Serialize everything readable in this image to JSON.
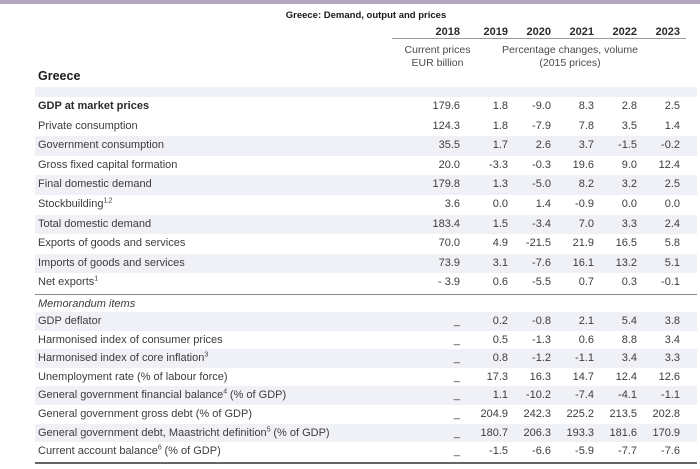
{
  "table": {
    "title": "Greece: Demand, output and prices",
    "country_label": "Greece",
    "years": [
      "2018",
      "2019",
      "2020",
      "2021",
      "2022",
      "2023"
    ],
    "col2018_header_line1": "Current prices",
    "col2018_header_line2": "EUR billion",
    "pct_header_line1": "Percentage changes, volume",
    "pct_header_line2": "(2015 prices)",
    "rows": [
      {
        "label": "GDP at market prices",
        "sup": "",
        "after": "",
        "indent": 0,
        "bold": true,
        "italic": false,
        "shaded": false,
        "section": "main",
        "values": [
          "179.6",
          "1.8",
          "-9.0",
          "8.3",
          "2.8",
          "2.5"
        ]
      },
      {
        "label": "Private consumption",
        "sup": "",
        "after": "",
        "indent": 1,
        "bold": false,
        "italic": false,
        "shaded": false,
        "section": "main",
        "values": [
          "124.3",
          "1.8",
          "-7.9",
          "7.8",
          "3.5",
          "1.4"
        ]
      },
      {
        "label": "Government consumption",
        "sup": "",
        "after": "",
        "indent": 1,
        "bold": false,
        "italic": false,
        "shaded": true,
        "section": "main",
        "values": [
          "35.5",
          "1.7",
          "2.6",
          "3.7",
          "-1.5",
          "-0.2"
        ]
      },
      {
        "label": "Gross fixed capital formation",
        "sup": "",
        "after": "",
        "indent": 1,
        "bold": false,
        "italic": false,
        "shaded": false,
        "section": "main",
        "values": [
          "20.0",
          "-3.3",
          "-0.3",
          "19.6",
          "9.0",
          "12.4"
        ]
      },
      {
        "label": "Final domestic demand",
        "sup": "",
        "after": "",
        "indent": 1,
        "bold": false,
        "italic": false,
        "shaded": true,
        "section": "main",
        "values": [
          "179.8",
          "1.3",
          "-5.0",
          "8.2",
          "3.2",
          "2.5"
        ]
      },
      {
        "label": "Stockbuilding",
        "sup": "1,2",
        "after": "",
        "indent": 2,
        "bold": false,
        "italic": false,
        "shaded": false,
        "section": "main",
        "values": [
          "3.6",
          "0.0",
          "1.4",
          "-0.9",
          "0.0",
          "0.0"
        ]
      },
      {
        "label": "Total domestic demand",
        "sup": "",
        "after": "",
        "indent": 1,
        "bold": false,
        "italic": false,
        "shaded": true,
        "section": "main",
        "values": [
          "183.4",
          "1.5",
          "-3.4",
          "7.0",
          "3.3",
          "2.4"
        ]
      },
      {
        "label": "Exports of goods and services",
        "sup": "",
        "after": "",
        "indent": 1,
        "bold": false,
        "italic": false,
        "shaded": false,
        "section": "main",
        "values": [
          "70.0",
          "4.9",
          "-21.5",
          "21.9",
          "16.5",
          "5.8"
        ]
      },
      {
        "label": "Imports of goods and services",
        "sup": "",
        "after": "",
        "indent": 1,
        "bold": false,
        "italic": false,
        "shaded": true,
        "section": "main",
        "values": [
          "73.9",
          "3.1",
          "-7.6",
          "16.1",
          "13.2",
          "5.1"
        ]
      },
      {
        "label": "Net exports",
        "sup": "1",
        "after": "",
        "indent": 2,
        "bold": false,
        "italic": false,
        "shaded": false,
        "section": "main",
        "values": [
          "- 3.9",
          "0.6",
          "-5.5",
          "0.7",
          "0.3",
          "-0.1"
        ]
      },
      {
        "label": "Memorandum items",
        "sup": "",
        "after": "",
        "indent": 0,
        "bold": false,
        "italic": true,
        "shaded": false,
        "section": "memo-title",
        "values": [
          "",
          "",
          "",
          "",
          "",
          ""
        ]
      },
      {
        "label": "GDP deflator",
        "sup": "",
        "after": "",
        "indent": 0,
        "bold": false,
        "italic": false,
        "shaded": true,
        "section": "memo",
        "values": [
          "_",
          "0.2",
          "-0.8",
          "2.1",
          "5.4",
          "3.8"
        ]
      },
      {
        "label": "Harmonised index of consumer prices",
        "sup": "",
        "after": "",
        "indent": 0,
        "bold": false,
        "italic": false,
        "shaded": false,
        "section": "memo",
        "values": [
          "_",
          "0.5",
          "-1.3",
          "0.6",
          "8.8",
          "3.4"
        ]
      },
      {
        "label": "Harmonised index of core inflation",
        "sup": "3",
        "after": "",
        "indent": 0,
        "bold": false,
        "italic": false,
        "shaded": true,
        "section": "memo",
        "values": [
          "_",
          "0.8",
          "-1.2",
          "-1.1",
          "3.4",
          "3.3"
        ]
      },
      {
        "label": "Unemployment rate (% of labour force)",
        "sup": "",
        "after": "",
        "indent": 0,
        "bold": false,
        "italic": false,
        "shaded": false,
        "section": "memo",
        "values": [
          "_",
          "17.3",
          "16.3",
          "14.7",
          "12.4",
          "12.6"
        ]
      },
      {
        "label": "General government financial balance",
        "sup": "4",
        "after": " (% of GDP)",
        "indent": 0,
        "bold": false,
        "italic": false,
        "shaded": true,
        "section": "memo",
        "values": [
          "_",
          "1.1",
          "-10.2",
          "-7.4",
          "-4.1",
          "-1.1"
        ]
      },
      {
        "label": "General government gross debt (% of GDP)",
        "sup": "",
        "after": "",
        "indent": 0,
        "bold": false,
        "italic": false,
        "shaded": false,
        "section": "memo",
        "values": [
          "_",
          "204.9",
          "242.3",
          "225.2",
          "213.5",
          "202.8"
        ]
      },
      {
        "label": "General government debt, Maastricht definition",
        "sup": "5",
        "after": " (% of GDP)",
        "indent": 0,
        "bold": false,
        "italic": false,
        "shaded": true,
        "section": "memo",
        "values": [
          "_",
          "180.7",
          "206.3",
          "193.3",
          "181.6",
          "170.9"
        ]
      },
      {
        "label": "Current account balance",
        "sup": "6",
        "after": " (% of GDP)",
        "indent": 0,
        "bold": false,
        "italic": false,
        "shaded": false,
        "section": "memo",
        "values": [
          "_",
          "-1.5",
          "-6.6",
          "-5.9",
          "-7.7",
          "-7.6"
        ]
      }
    ]
  },
  "colors": {
    "top_bar": "#b2a8c2",
    "shaded_row": "#f0f1f7",
    "text": "#3c3c3c",
    "header_rule": "#9a9a9a",
    "bottom_rule": "#666666"
  }
}
